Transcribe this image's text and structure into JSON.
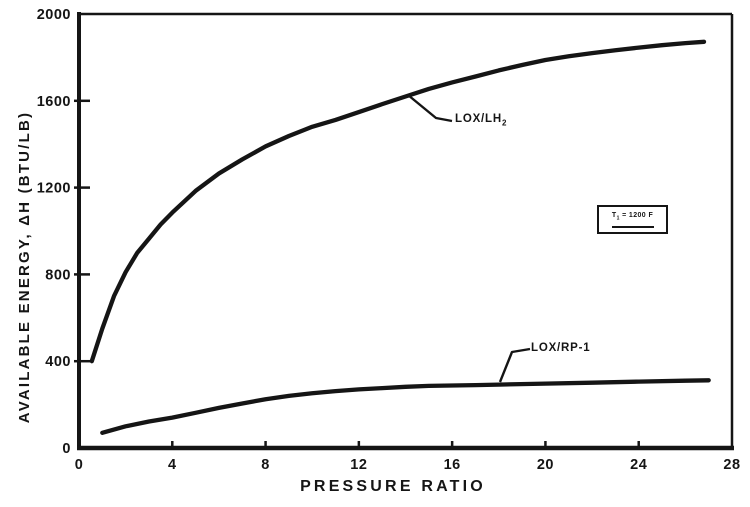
{
  "page": {
    "background": "#ffffff",
    "ink": "#151515"
  },
  "chart_data": {
    "type": "line",
    "title": "",
    "xlabel": "PRESSURE RATIO",
    "ylabel": "AVAILABLE ENERGY, ΔH (BTU/LB)",
    "xlim": [
      0,
      28
    ],
    "ylim": [
      0,
      2000
    ],
    "x_ticks": [
      0,
      4,
      8,
      12,
      16,
      20,
      24,
      28
    ],
    "y_ticks": [
      0,
      400,
      800,
      1200,
      1600,
      2000
    ],
    "grid": false,
    "legend_position": "inline-curve-labels",
    "annotation": {
      "pre": "T",
      "sub": "1",
      "post": " = 1200 F",
      "x": 23.8,
      "y": 1050
    },
    "series": [
      {
        "name": "LOX/LH2",
        "label_main": "LOX/LH",
        "label_sub": "2",
        "x": [
          0.55,
          1,
          1.5,
          2,
          2.5,
          3,
          3.5,
          4,
          5,
          6,
          7,
          8,
          9,
          10,
          11,
          12,
          13,
          14,
          15,
          16,
          17,
          18,
          19,
          20,
          21,
          22,
          23,
          24,
          25,
          26,
          26.8
        ],
        "y": [
          400,
          550,
          700,
          810,
          900,
          965,
          1030,
          1085,
          1185,
          1265,
          1330,
          1390,
          1438,
          1480,
          1512,
          1548,
          1585,
          1620,
          1655,
          1685,
          1712,
          1740,
          1765,
          1788,
          1805,
          1820,
          1833,
          1845,
          1856,
          1866,
          1872
        ]
      },
      {
        "name": "LOX/RP-1",
        "label": "LOX/RP-1",
        "x": [
          1,
          2,
          3,
          4,
          5,
          6,
          7,
          8,
          9,
          10,
          11,
          12,
          13,
          14,
          15,
          16,
          17,
          18,
          20,
          22,
          24,
          26,
          27
        ],
        "y": [
          70,
          100,
          122,
          140,
          162,
          185,
          205,
          225,
          240,
          252,
          262,
          270,
          276,
          282,
          286,
          288,
          290,
          292,
          297,
          301,
          306,
          310,
          312
        ]
      }
    ]
  }
}
